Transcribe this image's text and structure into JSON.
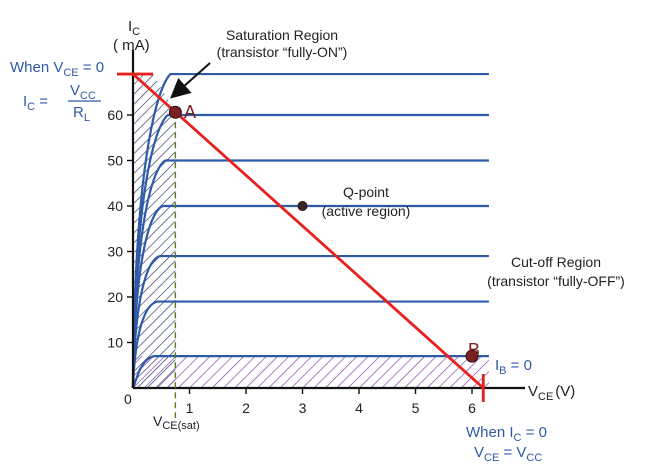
{
  "chart_data": {
    "type": "line",
    "xlabel": {
      "main": "V",
      "sub": "CE",
      "unit": "(V)"
    },
    "ylabel": {
      "main": "I",
      "sub": "C",
      "unit": "( mA)"
    },
    "x_origin_label": "0",
    "x_ticks": [
      1,
      2,
      3,
      4,
      5,
      6
    ],
    "y_ticks": [
      10,
      20,
      30,
      40,
      50,
      60
    ],
    "xlim": [
      0,
      6.6
    ],
    "ylim": [
      0,
      68
    ],
    "ib_curves": [
      {
        "sat": 7
      },
      {
        "sat": 19
      },
      {
        "sat": 29
      },
      {
        "sat": 40
      },
      {
        "sat": 50
      },
      {
        "sat": 60
      },
      {
        "sat": 69
      }
    ],
    "ib_zero_label": {
      "main": "I",
      "sub": "B",
      "rest": " = 0"
    },
    "load_line": {
      "x": [
        0,
        6.2
      ],
      "y": [
        69,
        0
      ]
    },
    "points": [
      {
        "label": "A",
        "x": 0.75,
        "y": 60.6
      },
      {
        "label": "",
        "x": 3.0,
        "y": 40
      },
      {
        "label": "B",
        "x": 6.0,
        "y": 7
      }
    ],
    "vce_sat": {
      "x": 0.75,
      "main": "V",
      "sub": "CE(sat)"
    },
    "saturation_label": [
      "Saturation Region",
      "(transistor “fully-ON”)"
    ],
    "qpoint_label": [
      "Q-point",
      "(active region)"
    ],
    "cutoff_label": [
      "Cut-off Region",
      "(transistor “fully-OFF”)"
    ],
    "left_annotation": {
      "line1": {
        "pre": "When V",
        "sub": "CE",
        "post": " = 0"
      },
      "lhs": {
        "main": "I",
        "sub": "C",
        "eq": " = "
      },
      "num": {
        "main": "V",
        "sub": "CC"
      },
      "den": {
        "main": "R",
        "sub": "L"
      }
    },
    "bottom_annotation": {
      "line1": {
        "pre": "When I",
        "sub": "C",
        "post": " = 0"
      },
      "line2": {
        "main1": "V",
        "sub1": "CE",
        "mid": " = V",
        "sub2": "CC"
      }
    },
    "colors": {
      "curves": "#2f5aa8",
      "load_line": "#e8211f",
      "points": "#7a2020",
      "hatch": "#27325f",
      "cutoff_hatch": "#7b3aa8",
      "text_blue": "#2f5aa8"
    }
  }
}
